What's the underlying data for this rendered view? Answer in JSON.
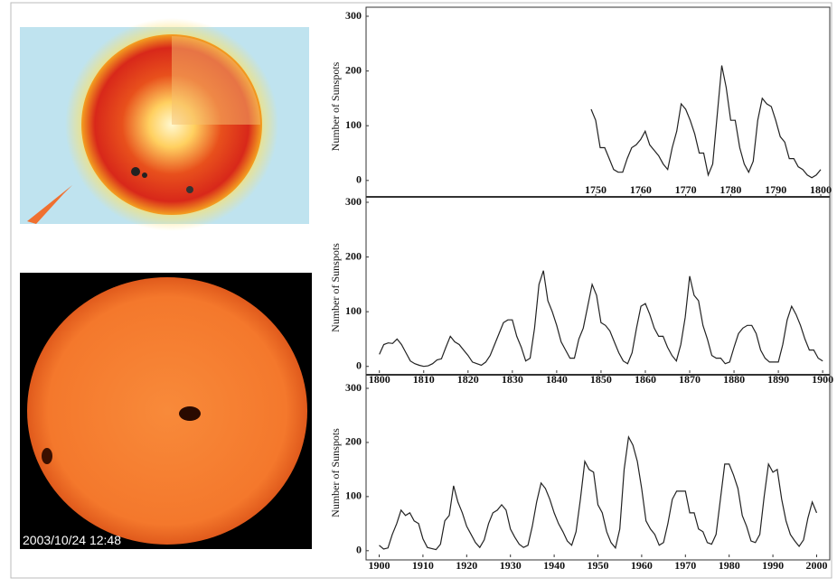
{
  "photo": {
    "caption": "2003/10/24 12:48"
  },
  "chart_data": [
    {
      "type": "line",
      "y_label": "Number of Sunspots",
      "color": "#222",
      "xlim": [
        1699,
        1802
      ],
      "ylim": [
        -30,
        300
      ],
      "xticks": [
        1750,
        1760,
        1770,
        1780,
        1790,
        1800
      ],
      "yticks": [
        0,
        100,
        200,
        300
      ],
      "x": [
        1749,
        1750,
        1751,
        1752,
        1753,
        1754,
        1755,
        1756,
        1757,
        1758,
        1759,
        1760,
        1761,
        1762,
        1763,
        1764,
        1765,
        1766,
        1767,
        1768,
        1769,
        1770,
        1771,
        1772,
        1773,
        1774,
        1775,
        1776,
        1777,
        1778,
        1779,
        1780,
        1781,
        1782,
        1783,
        1784,
        1785,
        1786,
        1787,
        1788,
        1789,
        1790,
        1791,
        1792,
        1793,
        1794,
        1795,
        1796,
        1797,
        1798,
        1799,
        1800
      ],
      "values": [
        130,
        110,
        60,
        60,
        40,
        20,
        15,
        15,
        40,
        60,
        65,
        75,
        90,
        65,
        55,
        45,
        30,
        20,
        60,
        90,
        140,
        130,
        110,
        85,
        50,
        50,
        10,
        30,
        120,
        210,
        170,
        110,
        110,
        60,
        30,
        15,
        35,
        110,
        150,
        140,
        135,
        110,
        80,
        70,
        40,
        40,
        25,
        20,
        10,
        5,
        10,
        20
      ]
    },
    {
      "type": "line",
      "y_label": "Number of Sunspots",
      "color": "#222",
      "xlim": [
        1797,
        1901.6
      ],
      "ylim": [
        -12,
        300
      ],
      "xticks": [
        1800,
        1810,
        1820,
        1830,
        1840,
        1850,
        1860,
        1870,
        1880,
        1890,
        1900
      ],
      "yticks": [
        0,
        100,
        200,
        300
      ],
      "x": [
        1800,
        1801,
        1802,
        1803,
        1804,
        1805,
        1806,
        1807,
        1808,
        1809,
        1810,
        1811,
        1812,
        1813,
        1814,
        1815,
        1816,
        1817,
        1818,
        1819,
        1820,
        1821,
        1822,
        1823,
        1824,
        1825,
        1826,
        1827,
        1828,
        1829,
        1830,
        1831,
        1832,
        1833,
        1834,
        1835,
        1836,
        1837,
        1838,
        1839,
        1840,
        1841,
        1842,
        1843,
        1844,
        1845,
        1846,
        1847,
        1848,
        1849,
        1850,
        1851,
        1852,
        1853,
        1854,
        1855,
        1856,
        1857,
        1858,
        1859,
        1860,
        1861,
        1862,
        1863,
        1864,
        1865,
        1866,
        1867,
        1868,
        1869,
        1870,
        1871,
        1872,
        1873,
        1874,
        1875,
        1876,
        1877,
        1878,
        1879,
        1880,
        1881,
        1882,
        1883,
        1884,
        1885,
        1886,
        1887,
        1888,
        1889,
        1890,
        1891,
        1892,
        1893,
        1894,
        1895,
        1896,
        1897,
        1898,
        1899,
        1900
      ],
      "values": [
        22,
        40,
        43,
        42,
        50,
        40,
        25,
        10,
        5,
        2,
        0,
        1,
        5,
        12,
        14,
        35,
        55,
        45,
        40,
        30,
        20,
        8,
        5,
        2,
        8,
        20,
        40,
        60,
        80,
        85,
        85,
        55,
        35,
        10,
        15,
        70,
        150,
        175,
        120,
        100,
        75,
        45,
        30,
        15,
        15,
        50,
        70,
        110,
        150,
        130,
        80,
        75,
        65,
        45,
        25,
        10,
        5,
        25,
        70,
        110,
        115,
        95,
        70,
        55,
        55,
        35,
        20,
        10,
        40,
        90,
        165,
        130,
        120,
        75,
        50,
        20,
        15,
        15,
        5,
        8,
        35,
        60,
        70,
        75,
        75,
        60,
        30,
        15,
        8,
        8,
        8,
        40,
        85,
        110,
        95,
        75,
        50,
        30,
        30,
        15,
        10
      ]
    },
    {
      "type": "line",
      "y_label": "Number of Sunspots",
      "color": "#222",
      "xlim": [
        1897,
        2003
      ],
      "ylim": [
        -12,
        300
      ],
      "xticks": [
        1900,
        1910,
        1920,
        1930,
        1940,
        1950,
        1960,
        1970,
        1980,
        1990,
        2000
      ],
      "yticks": [
        0,
        100,
        200,
        300
      ],
      "x": [
        1900,
        1901,
        1902,
        1903,
        1904,
        1905,
        1906,
        1907,
        1908,
        1909,
        1910,
        1911,
        1912,
        1913,
        1914,
        1915,
        1916,
        1917,
        1918,
        1919,
        1920,
        1921,
        1922,
        1923,
        1924,
        1925,
        1926,
        1927,
        1928,
        1929,
        1930,
        1931,
        1932,
        1933,
        1934,
        1935,
        1936,
        1937,
        1938,
        1939,
        1940,
        1941,
        1942,
        1943,
        1944,
        1945,
        1946,
        1947,
        1948,
        1949,
        1950,
        1951,
        1952,
        1953,
        1954,
        1955,
        1956,
        1957,
        1958,
        1959,
        1960,
        1961,
        1962,
        1963,
        1964,
        1965,
        1966,
        1967,
        1968,
        1969,
        1970,
        1971,
        1972,
        1973,
        1974,
        1975,
        1976,
        1977,
        1978,
        1979,
        1980,
        1981,
        1982,
        1983,
        1984,
        1985,
        1986,
        1987,
        1988,
        1989,
        1990,
        1991,
        1992,
        1993,
        1994,
        1995,
        1996,
        1997,
        1998,
        1999,
        2000
      ],
      "values": [
        10,
        3,
        5,
        30,
        50,
        75,
        65,
        70,
        55,
        50,
        22,
        6,
        4,
        2,
        12,
        55,
        65,
        120,
        90,
        70,
        45,
        30,
        15,
        6,
        20,
        50,
        70,
        75,
        85,
        75,
        40,
        25,
        12,
        6,
        10,
        45,
        90,
        125,
        115,
        95,
        70,
        50,
        35,
        18,
        10,
        35,
        95,
        165,
        150,
        145,
        85,
        70,
        35,
        15,
        5,
        40,
        150,
        210,
        195,
        165,
        115,
        55,
        40,
        30,
        10,
        15,
        50,
        95,
        110,
        110,
        110,
        70,
        70,
        40,
        35,
        15,
        12,
        30,
        95,
        160,
        160,
        140,
        115,
        65,
        45,
        18,
        15,
        30,
        100,
        160,
        145,
        150,
        95,
        55,
        30,
        18,
        8,
        20,
        60,
        90,
        70
      ]
    }
  ]
}
